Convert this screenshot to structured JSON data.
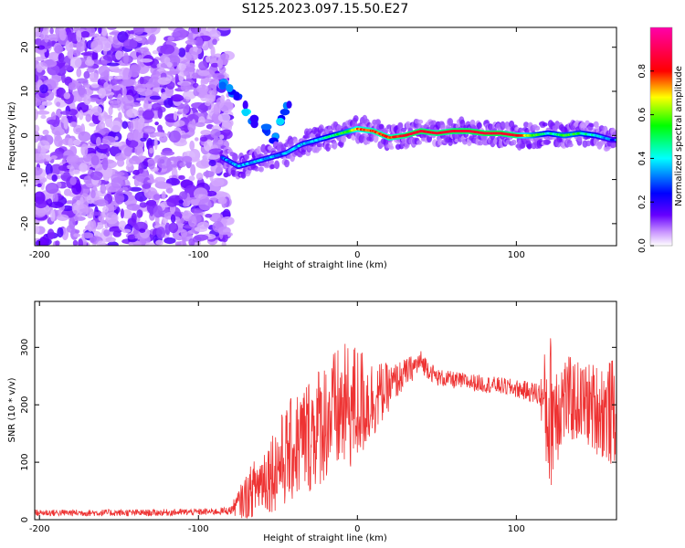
{
  "title": "S125.2023.097.15.50.E27",
  "chart_data": [
    {
      "type": "heatmap",
      "xlabel": "Height of straight line (km)",
      "ylabel": "Frequency (Hz)",
      "xlim": [
        -203,
        163
      ],
      "ylim": [
        -25,
        24.5
      ],
      "xticks": [
        -200,
        -100,
        0,
        100
      ],
      "yticks": [
        -20,
        -10,
        0,
        10,
        20
      ],
      "grid": false,
      "colorbar": {
        "label": "Normalized spectral amplitude",
        "range": [
          0,
          1
        ],
        "ticks": [
          0.0,
          0.2,
          0.4,
          0.6,
          0.8
        ],
        "colors": [
          "#ffffff",
          "#cc99ff",
          "#6600ff",
          "#0000ff",
          "#00ffff",
          "#00ff00",
          "#ffff00",
          "#ff0000",
          "#ff00aa"
        ]
      },
      "ridge": {
        "x": [
          -85,
          -75,
          -65,
          -55,
          -45,
          -35,
          -25,
          -15,
          -5,
          0,
          10,
          20,
          30,
          40,
          50,
          60,
          70,
          80,
          90,
          100,
          110,
          120,
          130,
          140,
          150,
          160
        ],
        "y": [
          -5,
          -7,
          -6,
          -5,
          -4,
          -2,
          -1,
          0,
          1,
          1.5,
          1,
          -0.5,
          0,
          1,
          0.5,
          1,
          1,
          0.5,
          0.5,
          0,
          0,
          0.5,
          0,
          0.5,
          0,
          -1
        ],
        "amplitude": [
          0.3,
          0.35,
          0.35,
          0.35,
          0.35,
          0.35,
          0.4,
          0.45,
          0.6,
          0.75,
          0.8,
          0.8,
          0.85,
          0.9,
          0.85,
          0.9,
          0.9,
          0.9,
          0.9,
          0.85,
          0.6,
          0.4,
          0.55,
          0.5,
          0.4,
          0.3
        ]
      },
      "noise_region_x": [
        -203,
        -85
      ]
    },
    {
      "type": "line",
      "xlabel": "Height of straight line (km)",
      "ylabel": "SNR (10 * v/v)",
      "xlim": [
        -203,
        163
      ],
      "ylim": [
        0,
        380
      ],
      "xticks": [
        -200,
        -100,
        0,
        100
      ],
      "yticks": [
        0,
        100,
        200,
        300
      ],
      "grid": false,
      "color": "#ee3333",
      "series": [
        {
          "x": [
            -203,
            -190,
            -170,
            -150,
            -130,
            -110,
            -90,
            -80,
            -70,
            -60,
            -50,
            -40,
            -30,
            -20,
            -10,
            0,
            10,
            20,
            30,
            40,
            50,
            60,
            70,
            80,
            90,
            100,
            110,
            115,
            120,
            125,
            130,
            140,
            150,
            160,
            163
          ],
          "y": [
            12,
            12,
            12,
            12,
            12,
            13,
            14,
            16,
            40,
            70,
            95,
            125,
            150,
            175,
            190,
            200,
            210,
            230,
            255,
            275,
            248,
            243,
            240,
            236,
            233,
            228,
            222,
            218,
            185,
            200,
            210,
            205,
            195,
            185,
            190
          ],
          "amplitude": [
            6,
            6,
            6,
            6,
            6,
            6,
            6,
            7,
            40,
            60,
            80,
            95,
            105,
            110,
            115,
            110,
            70,
            40,
            25,
            20,
            15,
            15,
            15,
            15,
            15,
            16,
            18,
            25,
            150,
            110,
            80,
            70,
            80,
            95,
            100
          ]
        }
      ]
    }
  ]
}
